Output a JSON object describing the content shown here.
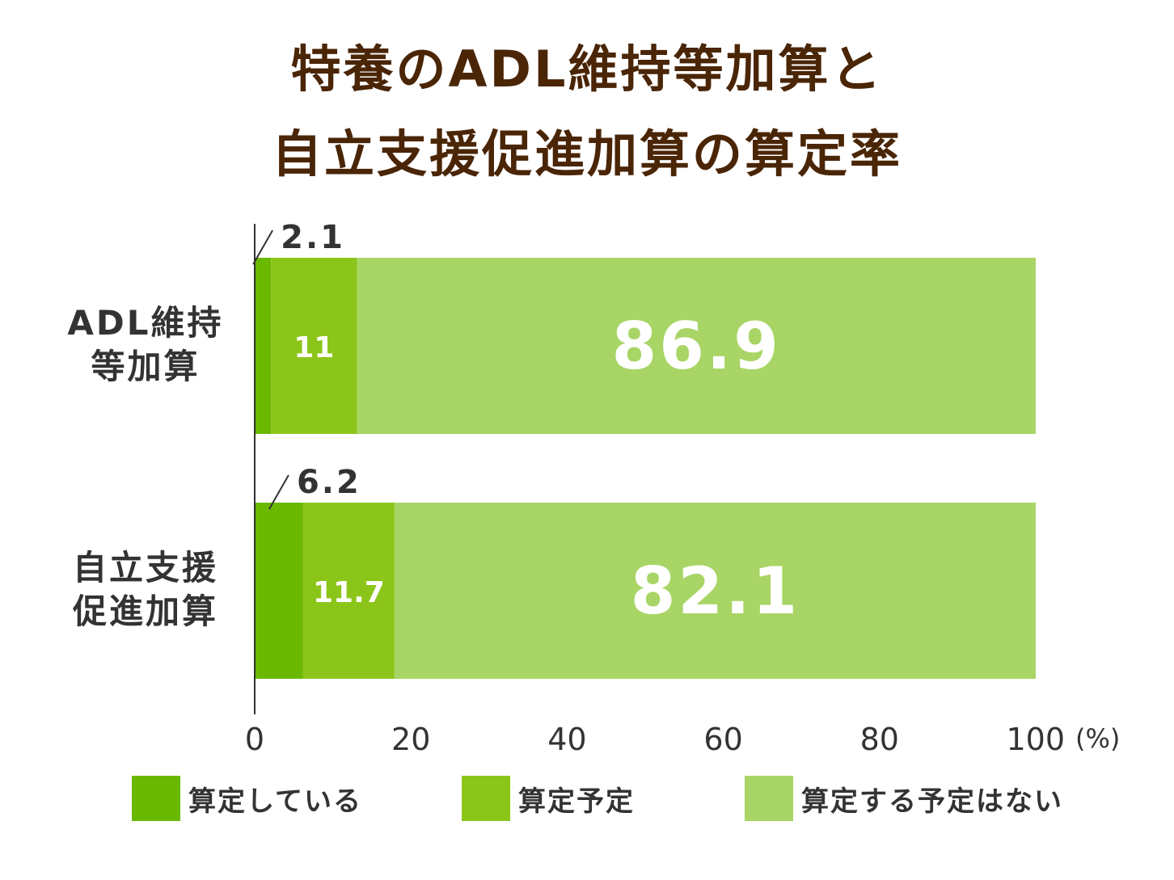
{
  "title": {
    "line1": "特養のADL維持等加算と",
    "line2": "自立支援促進加算の算定率"
  },
  "colors": {
    "title": "#4a2506",
    "text": "#333333",
    "series": [
      "#6bb800",
      "#8cc51a",
      "#a8d565"
    ]
  },
  "unit": "(%)",
  "chart_data": {
    "type": "bar",
    "orientation": "horizontal",
    "stacked": true,
    "title": "特養のADL維持等加算と自立支援促進加算の算定率",
    "categories": [
      {
        "line1": "ADL維持",
        "line2": "等加算"
      },
      {
        "line1": "自立支援",
        "line2": "促進加算"
      }
    ],
    "series": [
      {
        "name": "算定している",
        "values": [
          2.1,
          6.2
        ]
      },
      {
        "name": "算定予定",
        "values": [
          11,
          11.7
        ]
      },
      {
        "name": "算定する予定はない",
        "values": [
          86.9,
          82.1
        ]
      }
    ],
    "value_labels": [
      [
        "2.1",
        "11",
        "86.9"
      ],
      [
        "6.2",
        "11.7",
        "82.1"
      ]
    ],
    "xlim": [
      0,
      100
    ],
    "xticks": [
      "0",
      "20",
      "40",
      "60",
      "80",
      "100"
    ],
    "xlabel": "",
    "ylabel": "",
    "grid": false,
    "legend": "bottom"
  }
}
